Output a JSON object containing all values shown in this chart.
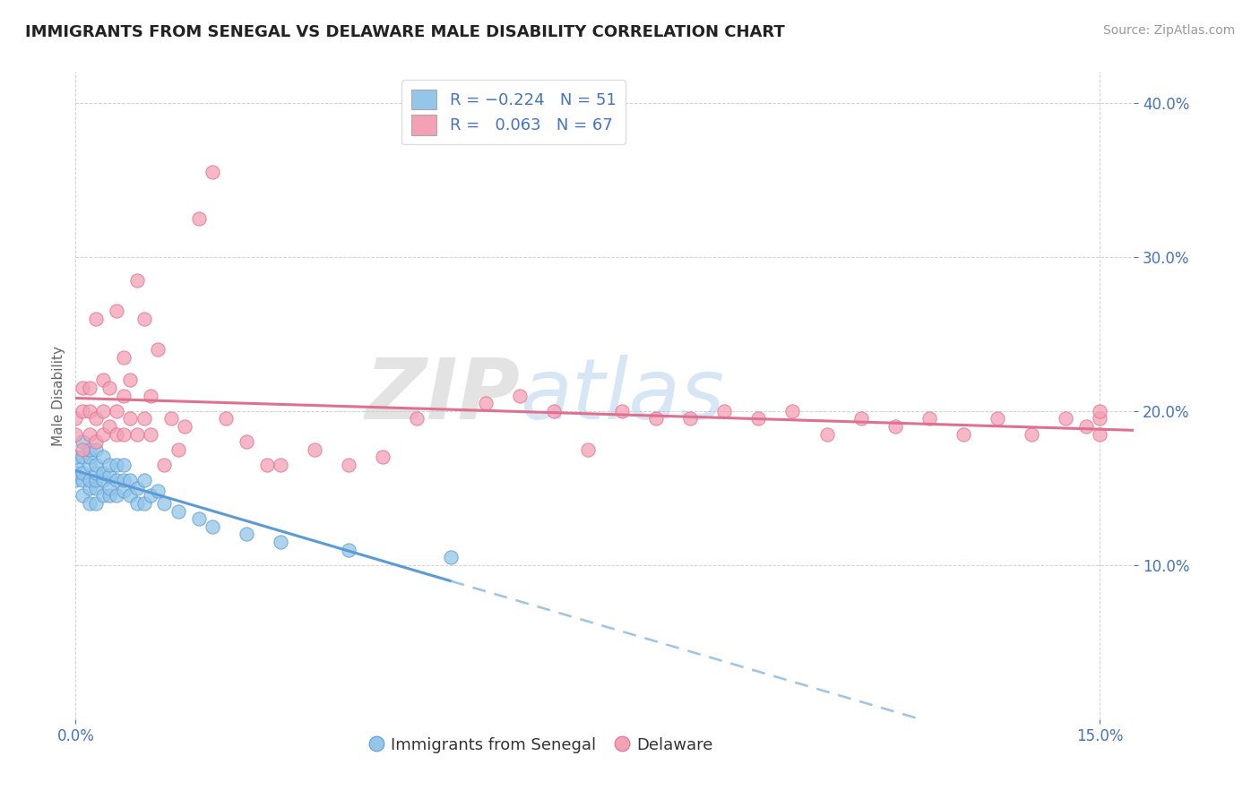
{
  "title": "IMMIGRANTS FROM SENEGAL VS DELAWARE MALE DISABILITY CORRELATION CHART",
  "source_text": "Source: ZipAtlas.com",
  "ylabel": "Male Disability",
  "xlim": [
    0.0,
    0.155
  ],
  "ylim": [
    0.0,
    0.42
  ],
  "color_blue": "#93C6E8",
  "color_pink": "#F4A0B5",
  "line_blue_solid": "#5B9BD5",
  "line_blue_dash": "#9DC3E6",
  "line_pink": "#E07090",
  "background_color": "#ffffff",
  "watermark_zip": "ZIP",
  "watermark_atlas": "atlas",
  "senegal_x": [
    0.0,
    0.0,
    0.0,
    0.0,
    0.001,
    0.001,
    0.001,
    0.001,
    0.001,
    0.002,
    0.002,
    0.002,
    0.002,
    0.002,
    0.002,
    0.003,
    0.003,
    0.003,
    0.003,
    0.003,
    0.003,
    0.004,
    0.004,
    0.004,
    0.004,
    0.005,
    0.005,
    0.005,
    0.005,
    0.006,
    0.006,
    0.006,
    0.007,
    0.007,
    0.007,
    0.008,
    0.008,
    0.009,
    0.009,
    0.01,
    0.01,
    0.011,
    0.012,
    0.013,
    0.015,
    0.018,
    0.02,
    0.025,
    0.03,
    0.04,
    0.055
  ],
  "senegal_y": [
    0.155,
    0.16,
    0.165,
    0.17,
    0.145,
    0.155,
    0.16,
    0.17,
    0.18,
    0.14,
    0.15,
    0.155,
    0.165,
    0.17,
    0.175,
    0.14,
    0.15,
    0.155,
    0.16,
    0.165,
    0.175,
    0.145,
    0.155,
    0.16,
    0.17,
    0.145,
    0.15,
    0.158,
    0.165,
    0.145,
    0.155,
    0.165,
    0.148,
    0.155,
    0.165,
    0.145,
    0.155,
    0.14,
    0.15,
    0.14,
    0.155,
    0.145,
    0.148,
    0.14,
    0.135,
    0.13,
    0.125,
    0.12,
    0.115,
    0.11,
    0.105
  ],
  "delaware_x": [
    0.0,
    0.0,
    0.001,
    0.001,
    0.001,
    0.002,
    0.002,
    0.002,
    0.003,
    0.003,
    0.003,
    0.004,
    0.004,
    0.004,
    0.005,
    0.005,
    0.006,
    0.006,
    0.006,
    0.007,
    0.007,
    0.007,
    0.008,
    0.008,
    0.009,
    0.009,
    0.01,
    0.01,
    0.011,
    0.011,
    0.012,
    0.013,
    0.014,
    0.015,
    0.016,
    0.018,
    0.02,
    0.022,
    0.025,
    0.028,
    0.03,
    0.035,
    0.04,
    0.045,
    0.05,
    0.06,
    0.065,
    0.07,
    0.075,
    0.08,
    0.085,
    0.09,
    0.095,
    0.1,
    0.105,
    0.11,
    0.115,
    0.12,
    0.125,
    0.13,
    0.135,
    0.14,
    0.145,
    0.148,
    0.15,
    0.15,
    0.15
  ],
  "delaware_y": [
    0.185,
    0.195,
    0.175,
    0.2,
    0.215,
    0.185,
    0.2,
    0.215,
    0.18,
    0.195,
    0.26,
    0.185,
    0.2,
    0.22,
    0.19,
    0.215,
    0.185,
    0.2,
    0.265,
    0.185,
    0.21,
    0.235,
    0.195,
    0.22,
    0.185,
    0.285,
    0.195,
    0.26,
    0.185,
    0.21,
    0.24,
    0.165,
    0.195,
    0.175,
    0.19,
    0.325,
    0.355,
    0.195,
    0.18,
    0.165,
    0.165,
    0.175,
    0.165,
    0.17,
    0.195,
    0.205,
    0.21,
    0.2,
    0.175,
    0.2,
    0.195,
    0.195,
    0.2,
    0.195,
    0.2,
    0.185,
    0.195,
    0.19,
    0.195,
    0.185,
    0.195,
    0.185,
    0.195,
    0.19,
    0.185,
    0.195,
    0.2
  ]
}
